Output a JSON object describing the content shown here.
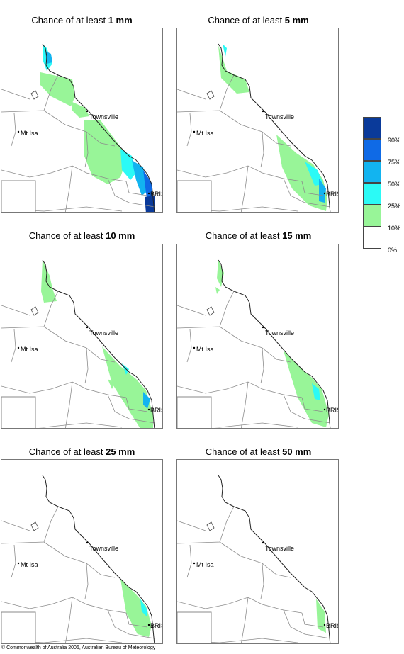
{
  "panels": [
    {
      "prefix": "Chance of at least ",
      "amount": "1 mm"
    },
    {
      "prefix": "Chance of at least ",
      "amount": "5 mm"
    },
    {
      "prefix": "Chance of at least ",
      "amount": "10 mm"
    },
    {
      "prefix": "Chance of at least ",
      "amount": "15 mm"
    },
    {
      "prefix": "Chance of at least ",
      "amount": "25 mm"
    },
    {
      "prefix": "Chance of at least ",
      "amount": "50 mm"
    }
  ],
  "towns": {
    "townsville": "Townsville",
    "mt_isa": "Mt Isa",
    "bris": "BRIS"
  },
  "legend": {
    "labels": [
      "90%",
      "75%",
      "50%",
      "25%",
      "10%",
      "0%"
    ],
    "colors": [
      "#0a3a9a",
      "#0f6ae6",
      "#12b4f0",
      "#2bfaf6",
      "#98f598",
      "#ffffff"
    ]
  },
  "copyright": "© Commonwealth of Australia 2006, Australian Bureau of Meteorology"
}
